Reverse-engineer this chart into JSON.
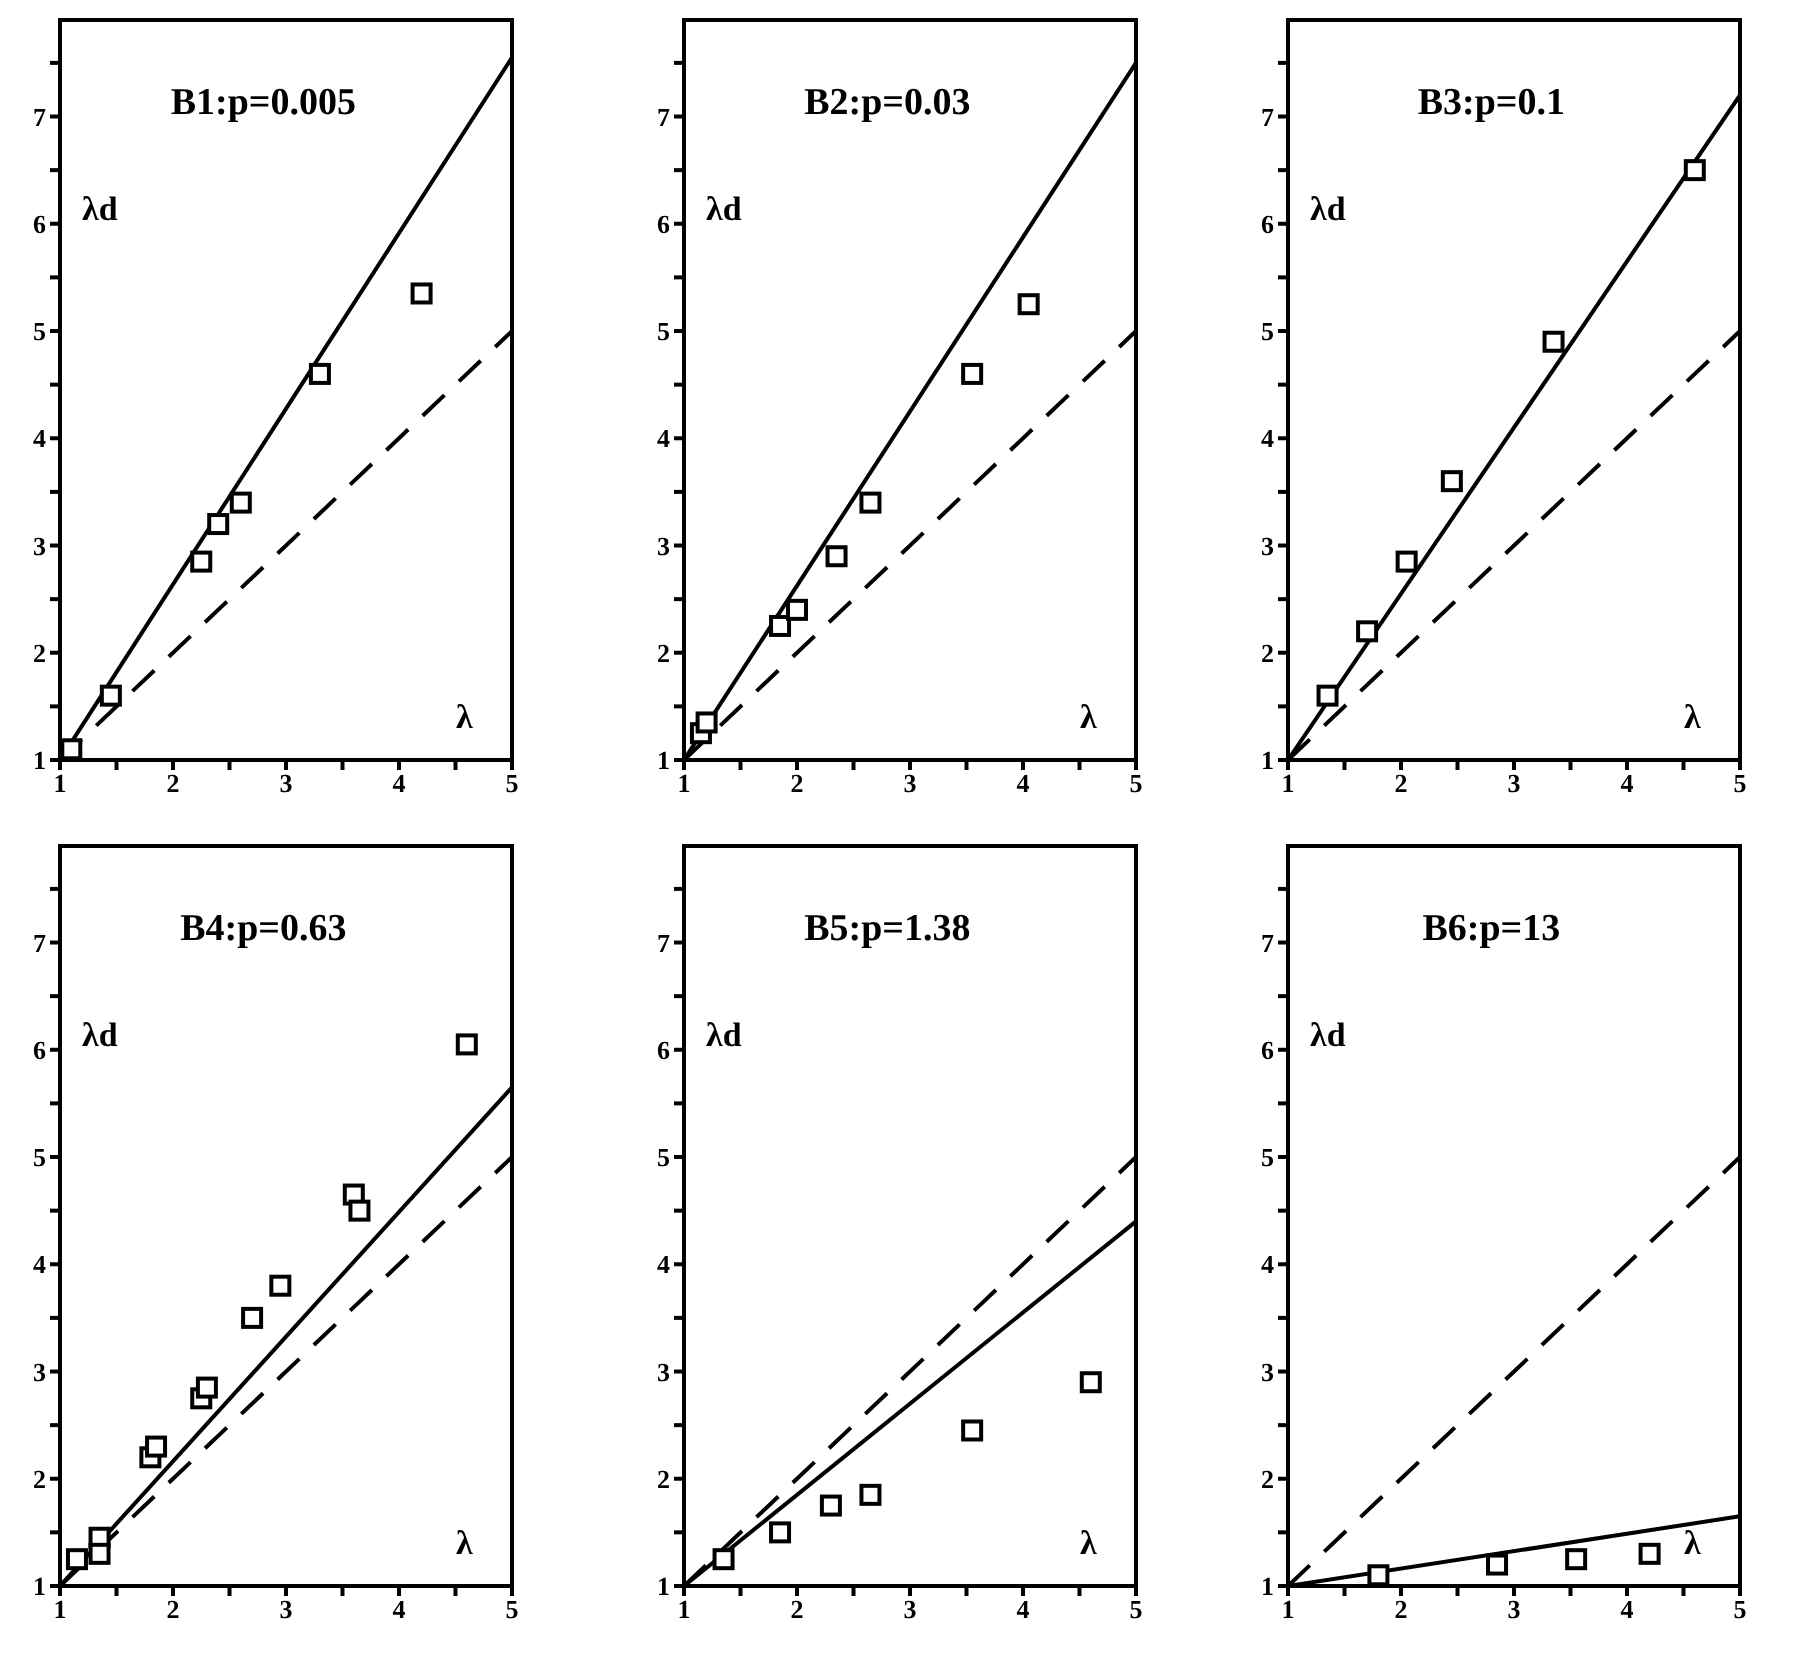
{
  "chart_data": [
    {
      "type": "scatter",
      "title": "B1:p=0.005",
      "xlabel": "λ",
      "ylabel": "λd",
      "xlim": [
        1,
        5
      ],
      "xticks": [
        1,
        {
          "value": 1.5,
          "label": null
        },
        2,
        {
          "value": 2.5,
          "label": null
        },
        3,
        {
          "value": 3.5,
          "label": null
        },
        4,
        {
          "value": 4.5,
          "label": null
        },
        5
      ],
      "ylim": [
        1,
        7.9
      ],
      "yticks": [
        1,
        {
          "value": 1.5,
          "label": null
        },
        2,
        {
          "value": 2.5,
          "label": null
        },
        3,
        {
          "value": 3.5,
          "label": null
        },
        4,
        {
          "value": 4.5,
          "label": null
        },
        5,
        {
          "value": 5.5,
          "label": null
        },
        6,
        {
          "value": 6.5,
          "label": null
        },
        7,
        {
          "value": 7.5,
          "label": null
        }
      ],
      "series": [
        {
          "type": "line",
          "color": "#000000",
          "x": [
            1,
            5
          ],
          "values": [
            1,
            7.55
          ],
          "line_style": "solid",
          "marker": "none"
        },
        {
          "type": "line",
          "color": "#000000",
          "x": [
            1,
            5
          ],
          "values": [
            1,
            5
          ],
          "line_style": "dashed",
          "marker": "none"
        },
        {
          "type": "scatter",
          "color": "#000000",
          "marker": "square",
          "x": [
            1.1,
            1.45,
            2.25,
            2.4,
            2.6,
            3.3,
            4.2
          ],
          "values": [
            1.1,
            1.6,
            2.85,
            3.2,
            3.4,
            4.6,
            5.35
          ]
        }
      ]
    },
    {
      "type": "scatter",
      "title": "B2:p=0.03",
      "xlabel": "λ",
      "ylabel": "λd",
      "xlim": [
        1,
        5
      ],
      "xticks": [
        1,
        {
          "value": 1.5,
          "label": null
        },
        2,
        {
          "value": 2.5,
          "label": null
        },
        3,
        {
          "value": 3.5,
          "label": null
        },
        4,
        {
          "value": 4.5,
          "label": null
        },
        5
      ],
      "ylim": [
        1,
        7.9
      ],
      "yticks": [
        1,
        {
          "value": 1.5,
          "label": null
        },
        2,
        {
          "value": 2.5,
          "label": null
        },
        3,
        {
          "value": 3.5,
          "label": null
        },
        4,
        {
          "value": 4.5,
          "label": null
        },
        5,
        {
          "value": 5.5,
          "label": null
        },
        6,
        {
          "value": 6.5,
          "label": null
        },
        7,
        {
          "value": 7.5,
          "label": null
        }
      ],
      "series": [
        {
          "type": "line",
          "color": "#000000",
          "x": [
            1,
            5
          ],
          "values": [
            1,
            7.5
          ],
          "line_style": "solid",
          "marker": "none"
        },
        {
          "type": "line",
          "color": "#000000",
          "x": [
            1,
            5
          ],
          "values": [
            1,
            5
          ],
          "line_style": "dashed",
          "marker": "none"
        },
        {
          "type": "scatter",
          "color": "#000000",
          "marker": "square",
          "x": [
            1.15,
            1.2,
            1.85,
            2.0,
            2.35,
            2.65,
            3.55,
            4.05
          ],
          "values": [
            1.25,
            1.35,
            2.25,
            2.4,
            2.9,
            3.4,
            4.6,
            5.25
          ]
        }
      ]
    },
    {
      "type": "scatter",
      "title": "B3:p=0.1",
      "xlabel": "λ",
      "ylabel": "λd",
      "xlim": [
        1,
        5
      ],
      "xticks": [
        1,
        {
          "value": 1.5,
          "label": null
        },
        2,
        {
          "value": 2.5,
          "label": null
        },
        3,
        {
          "value": 3.5,
          "label": null
        },
        4,
        {
          "value": 4.5,
          "label": null
        },
        5
      ],
      "ylim": [
        1,
        7.9
      ],
      "yticks": [
        1,
        {
          "value": 1.5,
          "label": null
        },
        2,
        {
          "value": 2.5,
          "label": null
        },
        3,
        {
          "value": 3.5,
          "label": null
        },
        4,
        {
          "value": 4.5,
          "label": null
        },
        5,
        {
          "value": 5.5,
          "label": null
        },
        6,
        {
          "value": 6.5,
          "label": null
        },
        7,
        {
          "value": 7.5,
          "label": null
        }
      ],
      "series": [
        {
          "type": "line",
          "color": "#000000",
          "x": [
            1,
            5
          ],
          "values": [
            1,
            7.2
          ],
          "line_style": "solid",
          "marker": "none"
        },
        {
          "type": "line",
          "color": "#000000",
          "x": [
            1,
            5
          ],
          "values": [
            1,
            5
          ],
          "line_style": "dashed",
          "marker": "none"
        },
        {
          "type": "scatter",
          "color": "#000000",
          "marker": "square",
          "x": [
            1.35,
            1.7,
            2.05,
            2.45,
            3.35,
            4.6
          ],
          "values": [
            1.6,
            2.2,
            2.85,
            3.6,
            4.9,
            6.5
          ]
        }
      ]
    },
    {
      "type": "scatter",
      "title": "B4:p=0.63",
      "xlabel": "λ",
      "ylabel": "λd",
      "xlim": [
        1,
        5
      ],
      "xticks": [
        1,
        {
          "value": 1.5,
          "label": null
        },
        2,
        {
          "value": 2.5,
          "label": null
        },
        3,
        {
          "value": 3.5,
          "label": null
        },
        4,
        {
          "value": 4.5,
          "label": null
        },
        5
      ],
      "ylim": [
        1,
        7.9
      ],
      "yticks": [
        1,
        {
          "value": 1.5,
          "label": null
        },
        2,
        {
          "value": 2.5,
          "label": null
        },
        3,
        {
          "value": 3.5,
          "label": null
        },
        4,
        {
          "value": 4.5,
          "label": null
        },
        5,
        {
          "value": 5.5,
          "label": null
        },
        6,
        {
          "value": 6.5,
          "label": null
        },
        7,
        {
          "value": 7.5,
          "label": null
        }
      ],
      "series": [
        {
          "type": "line",
          "color": "#000000",
          "x": [
            1,
            5
          ],
          "values": [
            1,
            5.65
          ],
          "line_style": "solid",
          "marker": "none"
        },
        {
          "type": "line",
          "color": "#000000",
          "x": [
            1,
            5
          ],
          "values": [
            1,
            5
          ],
          "line_style": "dashed",
          "marker": "none"
        },
        {
          "type": "scatter",
          "color": "#000000",
          "marker": "square",
          "x": [
            1.15,
            1.35,
            1.35,
            1.8,
            1.85,
            2.25,
            2.3,
            2.7,
            2.95,
            3.6,
            3.65,
            4.6
          ],
          "values": [
            1.25,
            1.45,
            1.3,
            2.2,
            2.3,
            2.75,
            2.85,
            3.5,
            3.8,
            4.65,
            4.5,
            6.05
          ]
        }
      ]
    },
    {
      "type": "scatter",
      "title": "B5:p=1.38",
      "xlabel": "λ",
      "ylabel": "λd",
      "xlim": [
        1,
        5
      ],
      "xticks": [
        1,
        {
          "value": 1.5,
          "label": null
        },
        2,
        {
          "value": 2.5,
          "label": null
        },
        3,
        {
          "value": 3.5,
          "label": null
        },
        4,
        {
          "value": 4.5,
          "label": null
        },
        5
      ],
      "ylim": [
        1,
        7.9
      ],
      "yticks": [
        1,
        {
          "value": 1.5,
          "label": null
        },
        2,
        {
          "value": 2.5,
          "label": null
        },
        3,
        {
          "value": 3.5,
          "label": null
        },
        4,
        {
          "value": 4.5,
          "label": null
        },
        5,
        {
          "value": 5.5,
          "label": null
        },
        6,
        {
          "value": 6.5,
          "label": null
        },
        7,
        {
          "value": 7.5,
          "label": null
        }
      ],
      "series": [
        {
          "type": "line",
          "color": "#000000",
          "x": [
            1,
            5
          ],
          "values": [
            1,
            4.4
          ],
          "line_style": "solid",
          "marker": "none"
        },
        {
          "type": "line",
          "color": "#000000",
          "x": [
            1,
            5
          ],
          "values": [
            1,
            5
          ],
          "line_style": "dashed",
          "marker": "none"
        },
        {
          "type": "scatter",
          "color": "#000000",
          "marker": "square",
          "x": [
            1.35,
            1.85,
            2.3,
            2.65,
            3.55,
            4.6
          ],
          "values": [
            1.25,
            1.5,
            1.75,
            1.85,
            2.45,
            2.9
          ]
        }
      ]
    },
    {
      "type": "scatter",
      "title": "B6:p=13",
      "xlabel": "λ",
      "ylabel": "λd",
      "xlim": [
        1,
        5
      ],
      "xticks": [
        1,
        {
          "value": 1.5,
          "label": null
        },
        2,
        {
          "value": 2.5,
          "label": null
        },
        3,
        {
          "value": 3.5,
          "label": null
        },
        4,
        {
          "value": 4.5,
          "label": null
        },
        5
      ],
      "ylim": [
        1,
        7.9
      ],
      "yticks": [
        1,
        {
          "value": 1.5,
          "label": null
        },
        2,
        {
          "value": 2.5,
          "label": null
        },
        3,
        {
          "value": 3.5,
          "label": null
        },
        4,
        {
          "value": 4.5,
          "label": null
        },
        5,
        {
          "value": 5.5,
          "label": null
        },
        6,
        {
          "value": 6.5,
          "label": null
        },
        7,
        {
          "value": 7.5,
          "label": null
        }
      ],
      "series": [
        {
          "type": "line",
          "color": "#000000",
          "x": [
            1,
            5
          ],
          "values": [
            1,
            1.65
          ],
          "line_style": "solid",
          "marker": "none"
        },
        {
          "type": "line",
          "color": "#000000",
          "x": [
            1,
            5
          ],
          "values": [
            1,
            5
          ],
          "line_style": "dashed",
          "marker": "none"
        },
        {
          "type": "scatter",
          "color": "#000000",
          "marker": "square",
          "x": [
            1.8,
            2.85,
            3.55,
            4.2
          ],
          "values": [
            1.1,
            1.2,
            1.25,
            1.3
          ]
        }
      ]
    }
  ]
}
